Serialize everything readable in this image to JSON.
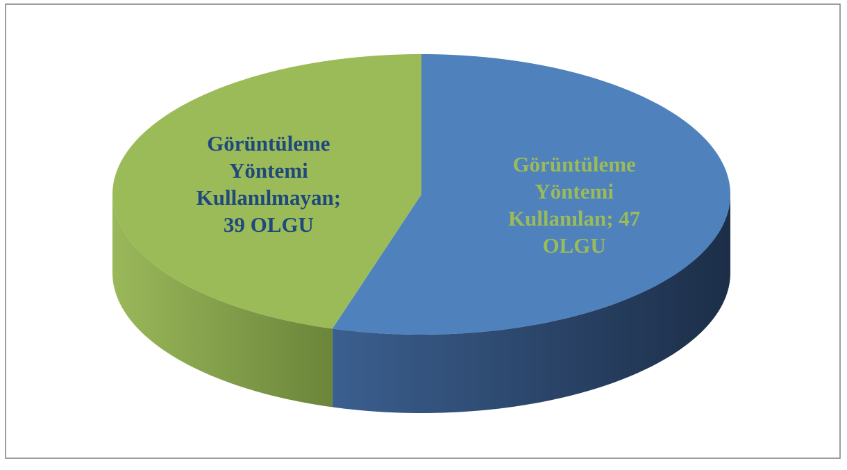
{
  "chart_data": {
    "type": "pie3d",
    "values": [
      47,
      39
    ],
    "value_labels": [
      "Görüntüleme Yöntemi Kullanılan; 47 OLGU",
      "Görüntüleme Yöntemi Kullanılmayan; 39 OLGU"
    ],
    "colors": [
      "#4f81bd",
      "#9bbb59"
    ],
    "label_colors": [
      "#9bbb59",
      "#1f497d"
    ]
  }
}
